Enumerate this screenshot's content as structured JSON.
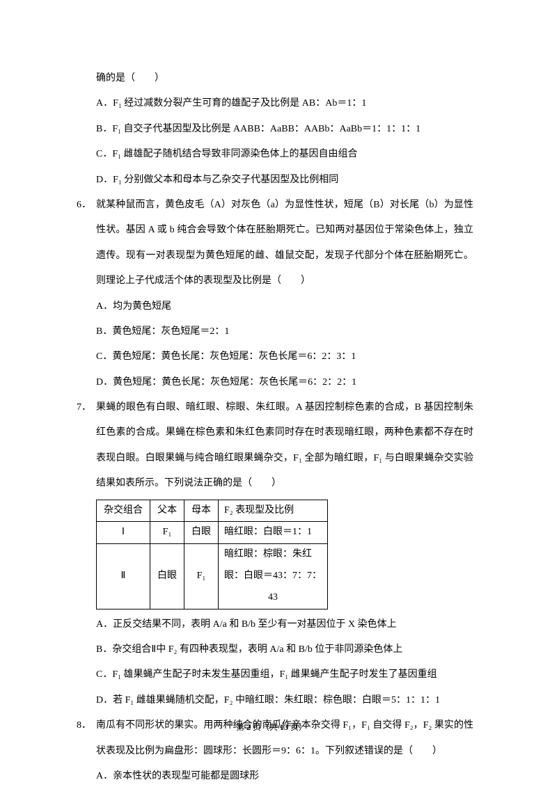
{
  "cont": {
    "trail": "确的是（　　）",
    "a": "A．F₁ 经过减数分裂产生可育的雄配子及比例是 AB：Ab＝1：1",
    "b": "B．F₁ 自交子代基因型及比例是 AABB：AaBB：AABb：AaBb＝1：1：1：1",
    "c": "C．F₁ 雌雄配子随机结合导致非同源染色体上的基因自由组合",
    "d": "D．F₁ 分别做父本和母本与乙杂交子代基因型及比例相同"
  },
  "q6": {
    "num": "6．",
    "stem": "就某种鼠而言，黄色皮毛（A）对灰色（a）为显性性状，短尾（B）对长尾（b）为显性性状。基因 A 或 b 纯合会导致个体在胚胎期死亡。已知两对基因位于常染色体上，独立遗传。现有一对表现型为黄色短尾的雌、雄鼠交配，发现子代部分个体在胚胎期死亡。则理论上子代成活个体的表现型及比例是（　　）",
    "a": "A．均为黄色短尾",
    "b": "B．黄色短尾：灰色短尾＝2：1",
    "c": "C．黄色短尾：黄色长尾：灰色短尾：灰色长尾＝6：2：3：1",
    "d": "D．黄色短尾：黄色长尾：灰色短尾：灰色长尾＝6：2：2：1"
  },
  "q7": {
    "num": "7．",
    "stem": "果蝇的眼色有白眼、暗红眼、棕眼、朱红眼。A 基因控制棕色素的合成，B 基因控制朱红色素的合成。果蝇在棕色素和朱红色素同时存在时表现暗红眼，两种色素都不存在时表现白眼。白眼果蝇与纯合暗红眼果蝇杂交，F₁ 全部为暗红眼，F₁ 与白眼果蝇杂交实验结果如表所示。下列说法正确的是（　　）",
    "table": {
      "h1": "杂交组合",
      "h2": "父本",
      "h3": "母本",
      "h4": "F₂ 表现型及比例",
      "r1c1": "Ⅰ",
      "r1c2": "F₁",
      "r1c3": "白眼",
      "r1c4": "暗红眼：白眼＝1：1",
      "r2c1": "Ⅱ",
      "r2c2": "白眼",
      "r2c3": "F₁",
      "r2c4a": "暗红眼：棕眼：朱红",
      "r2c4b": "眼：白眼＝43：7：7：",
      "r2c4c": "43"
    },
    "a": "A．正反交结果不同，表明 A/a 和 B/b 至少有一对基因位于 X 染色体上",
    "b": "B．杂交组合Ⅱ中 F₂ 有四种表现型，表明 A/a 和 B/b 位于非同源染色体上",
    "c": "C．F₁ 雄果蝇产生配子时未发生基因重组，F₁ 雌果蝇产生配子时发生了基因重组",
    "d": "D．若 F₁ 雌雄果蝇随机交配，F₂ 中暗红眼：朱红眼：棕色眼：白眼＝5：1：1：1"
  },
  "q8": {
    "num": "8．",
    "stem": "南瓜有不同形状的果实。用两种纯合的南瓜作亲本杂交得 F₁，F₁ 自交得 F₂，F₂ 果实的性状表现及比例为扁盘形：圆球形：长圆形＝9：6：1。下列叙述错误的是（　　）",
    "a": "A．亲本性状的表现型可能都是圆球形"
  },
  "footer": {
    "pre": "第 ",
    "page": "2",
    "mid": " 页（共 ",
    "total": "13",
    "post": " 页）"
  }
}
